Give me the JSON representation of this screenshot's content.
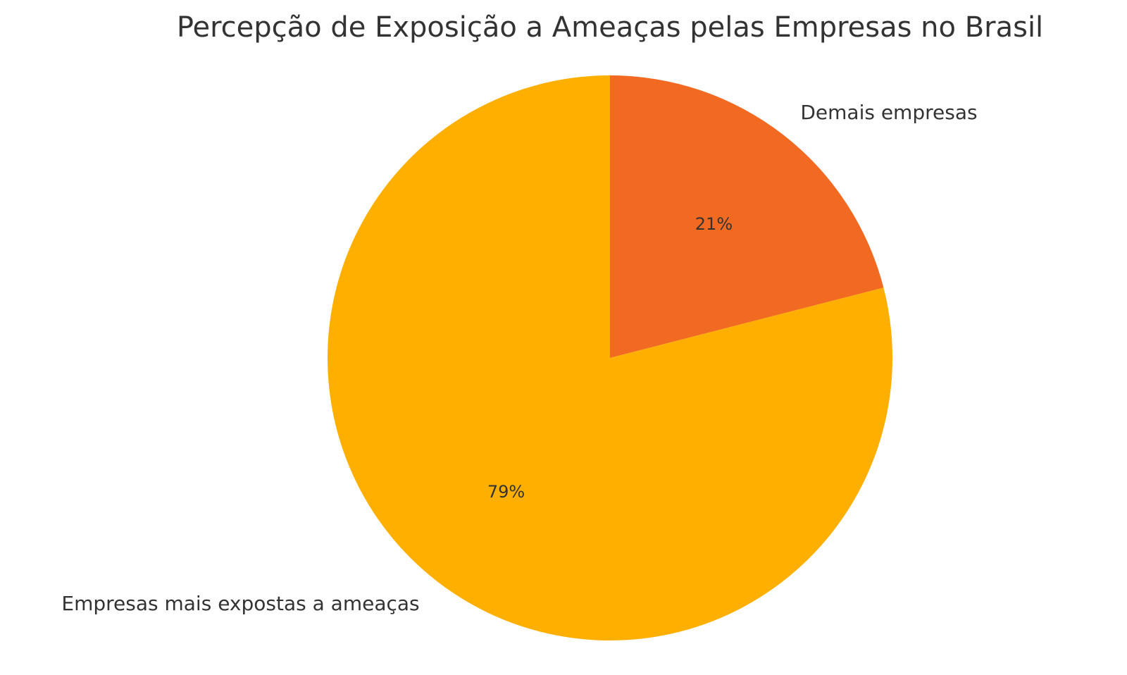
{
  "chart_data": {
    "type": "pie",
    "title": "Percepção de Exposição a Ameaças pelas Empresas no Brasil",
    "start_angle_deg": 90,
    "direction": "clockwise",
    "slices": [
      {
        "label": "Demais empresas",
        "value": 21,
        "pct_label": "21%",
        "color": "#F26A21"
      },
      {
        "label": "Empresas mais expostas a ameaças",
        "value": 79,
        "pct_label": "79%",
        "color": "#FFAF00"
      }
    ]
  }
}
